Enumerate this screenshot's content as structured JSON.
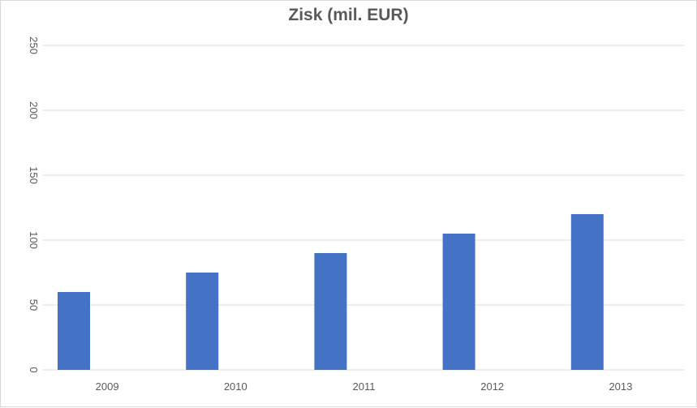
{
  "chart_data": {
    "type": "bar",
    "title": "Zisk (mil. EUR)",
    "categories": [
      "2009",
      "2010",
      "2011",
      "2012",
      "2013"
    ],
    "series": [
      {
        "values": [
          60,
          75,
          90,
          105,
          120
        ]
      }
    ],
    "ylim": [
      0,
      250
    ],
    "yticks": [
      0,
      50,
      100,
      150,
      200,
      250
    ],
    "xlabel": "",
    "ylabel": "",
    "grid": true,
    "legend": "none",
    "colors": {
      "bar": "#4472c4",
      "grid": "#d9d9d9",
      "text": "#595959"
    }
  }
}
